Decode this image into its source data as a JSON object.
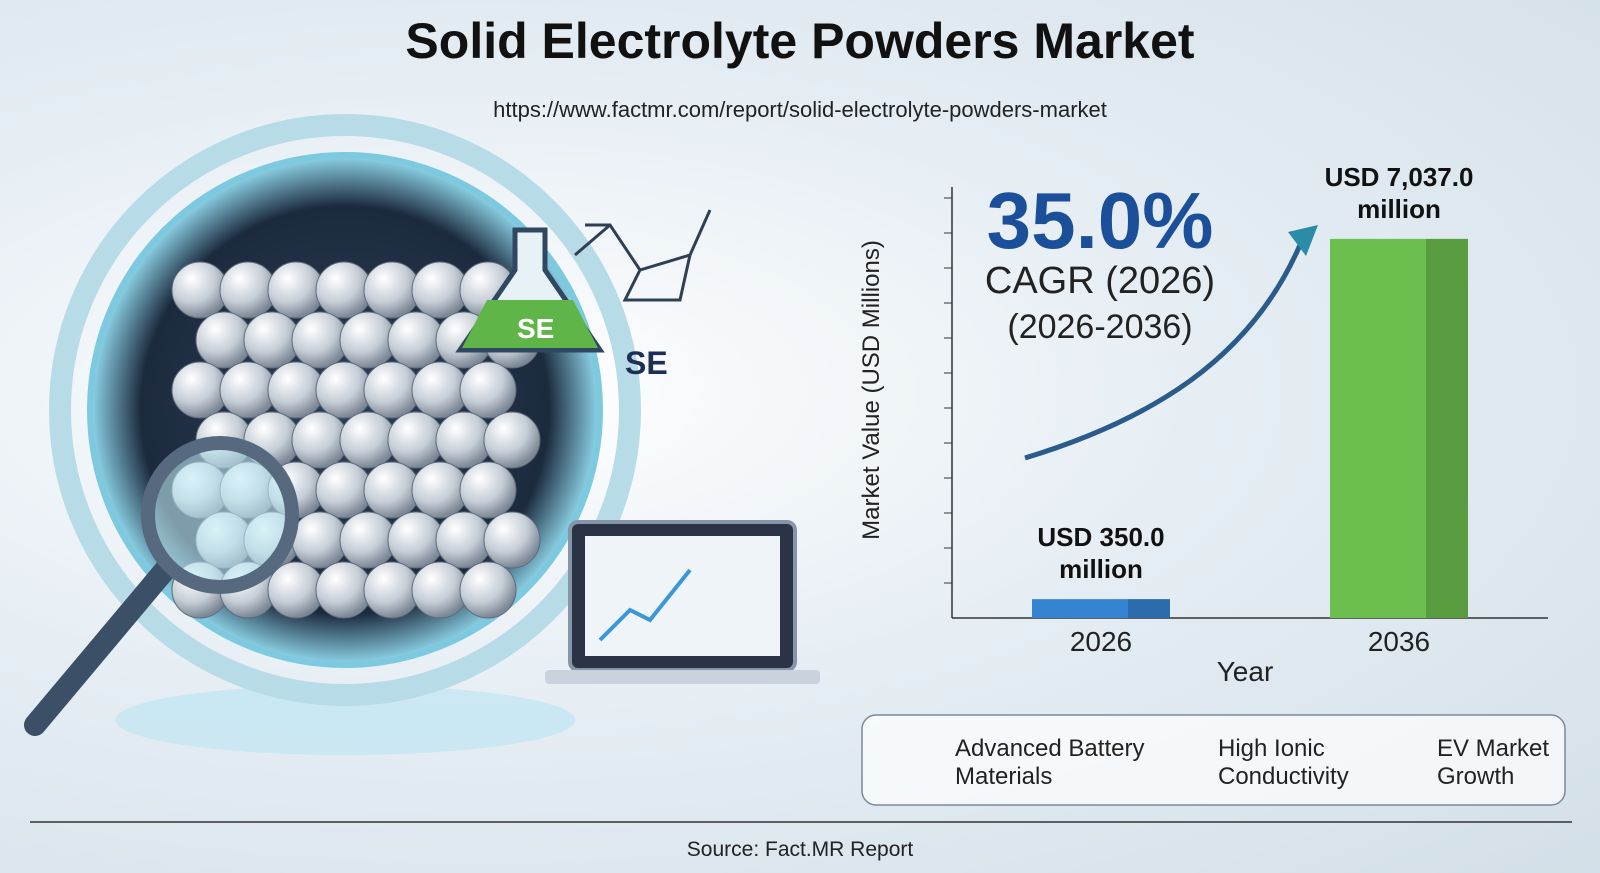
{
  "header": {
    "title": "Solid Electrolyte Powders Market",
    "url": "https://www.factmr.com/report/solid-electrolyte-powders-market"
  },
  "illustration": {
    "flask_label": "SE",
    "molecule_label": "SE"
  },
  "chart_data": {
    "type": "bar",
    "x_label": "Year",
    "y_label": "Market Value (USD Millions)",
    "categories": [
      "2026",
      "2036"
    ],
    "values": [
      350.0,
      7037.0
    ],
    "value_labels": [
      "USD 350.0 million",
      "USD 7,037.0 million"
    ],
    "colors": [
      "#3484d2",
      "#6cbf4e"
    ],
    "ylim": [
      0,
      8000
    ],
    "annotations": [
      "35.0%",
      "CAGR (2026)",
      "(2026-2036)"
    ]
  },
  "features": [
    "Advanced Battery Materials",
    "High Ionic Conductivity",
    "EV Market Growth"
  ],
  "source": "Source: Fact.MR Report"
}
